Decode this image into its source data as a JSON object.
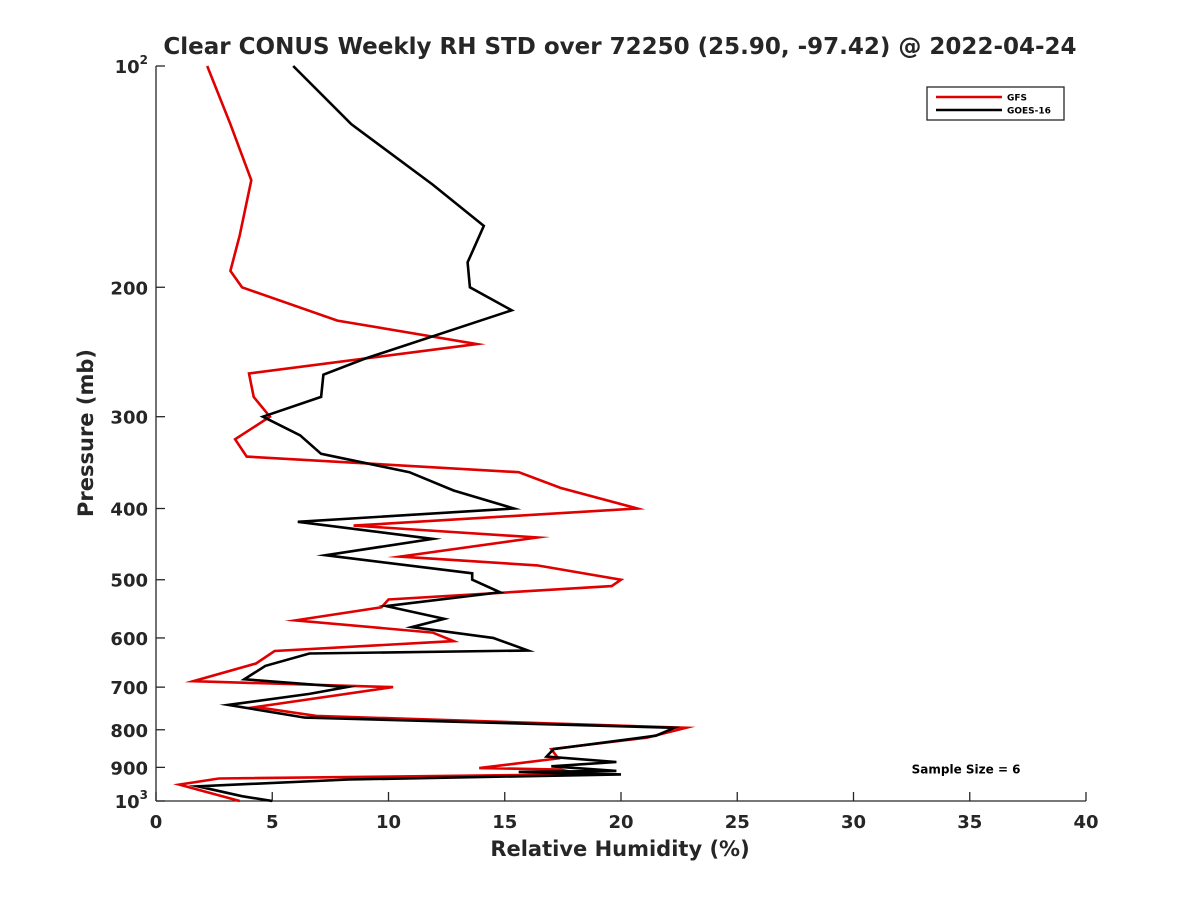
{
  "chart_data": {
    "type": "line",
    "title": "Clear CONUS Weekly RH STD over 72250 (25.90, -97.42) @ 2022-04-24",
    "xlabel": "Relative Humidity (%)",
    "ylabel": "Pressure (mb)",
    "xlim": [
      0,
      40
    ],
    "ylim": [
      1000,
      100
    ],
    "yscale": "log",
    "y_reversed": true,
    "grid": false,
    "legend_position": "top-right",
    "x_ticks": [
      {
        "value": 0,
        "label": "0"
      },
      {
        "value": 5,
        "label": "5"
      },
      {
        "value": 10,
        "label": "10"
      },
      {
        "value": 15,
        "label": "15"
      },
      {
        "value": 20,
        "label": "20"
      },
      {
        "value": 25,
        "label": "25"
      },
      {
        "value": 30,
        "label": "30"
      },
      {
        "value": 35,
        "label": "35"
      },
      {
        "value": 40,
        "label": "40"
      }
    ],
    "y_ticks": [
      {
        "value": 100,
        "label": "10",
        "sup": "2"
      },
      {
        "value": 200,
        "label": "200",
        "sup": ""
      },
      {
        "value": 300,
        "label": "300",
        "sup": ""
      },
      {
        "value": 400,
        "label": "400",
        "sup": ""
      },
      {
        "value": 500,
        "label": "500",
        "sup": ""
      },
      {
        "value": 600,
        "label": "600",
        "sup": ""
      },
      {
        "value": 700,
        "label": "700",
        "sup": ""
      },
      {
        "value": 800,
        "label": "800",
        "sup": ""
      },
      {
        "value": 900,
        "label": "900",
        "sup": ""
      },
      {
        "value": 1000,
        "label": "10",
        "sup": "3"
      }
    ],
    "series": [
      {
        "name": "GFS",
        "color": "#e00000",
        "points": [
          {
            "rh": 2.2,
            "p": 100
          },
          {
            "rh": 3.2,
            "p": 120
          },
          {
            "rh": 4.1,
            "p": 143
          },
          {
            "rh": 3.6,
            "p": 170
          },
          {
            "rh": 3.2,
            "p": 190
          },
          {
            "rh": 3.7,
            "p": 200
          },
          {
            "rh": 7.8,
            "p": 222
          },
          {
            "rh": 13.8,
            "p": 239
          },
          {
            "rh": 4.0,
            "p": 262
          },
          {
            "rh": 4.2,
            "p": 282
          },
          {
            "rh": 4.9,
            "p": 300
          },
          {
            "rh": 3.4,
            "p": 322
          },
          {
            "rh": 3.9,
            "p": 340
          },
          {
            "rh": 15.6,
            "p": 357
          },
          {
            "rh": 17.4,
            "p": 375
          },
          {
            "rh": 20.7,
            "p": 400
          },
          {
            "rh": 8.5,
            "p": 422
          },
          {
            "rh": 16.4,
            "p": 438
          },
          {
            "rh": 10.5,
            "p": 465
          },
          {
            "rh": 16.4,
            "p": 478
          },
          {
            "rh": 20.0,
            "p": 500
          },
          {
            "rh": 19.6,
            "p": 510
          },
          {
            "rh": 10.0,
            "p": 532
          },
          {
            "rh": 9.7,
            "p": 545
          },
          {
            "rh": 6.0,
            "p": 568
          },
          {
            "rh": 11.9,
            "p": 590
          },
          {
            "rh": 12.8,
            "p": 606
          },
          {
            "rh": 5.1,
            "p": 625
          },
          {
            "rh": 4.3,
            "p": 650
          },
          {
            "rh": 1.6,
            "p": 687
          },
          {
            "rh": 10.2,
            "p": 700
          },
          {
            "rh": 4.3,
            "p": 745
          },
          {
            "rh": 6.9,
            "p": 766
          },
          {
            "rh": 22.8,
            "p": 795
          },
          {
            "rh": 21.1,
            "p": 820
          },
          {
            "rh": 17.0,
            "p": 850
          },
          {
            "rh": 17.3,
            "p": 875
          },
          {
            "rh": 13.9,
            "p": 902
          },
          {
            "rh": 17.4,
            "p": 906
          },
          {
            "rh": 18.3,
            "p": 920
          },
          {
            "rh": 2.7,
            "p": 932
          },
          {
            "rh": 1.0,
            "p": 950
          },
          {
            "rh": 3.6,
            "p": 1000
          }
        ]
      },
      {
        "name": "GOES-16",
        "color": "#000000",
        "points": [
          {
            "rh": 5.9,
            "p": 100
          },
          {
            "rh": 8.4,
            "p": 120
          },
          {
            "rh": 11.9,
            "p": 145
          },
          {
            "rh": 14.1,
            "p": 165
          },
          {
            "rh": 13.4,
            "p": 185
          },
          {
            "rh": 13.5,
            "p": 200
          },
          {
            "rh": 15.3,
            "p": 215
          },
          {
            "rh": 9.0,
            "p": 250
          },
          {
            "rh": 7.2,
            "p": 263
          },
          {
            "rh": 7.1,
            "p": 282
          },
          {
            "rh": 4.6,
            "p": 300
          },
          {
            "rh": 6.2,
            "p": 318
          },
          {
            "rh": 7.1,
            "p": 337
          },
          {
            "rh": 10.9,
            "p": 357
          },
          {
            "rh": 12.8,
            "p": 378
          },
          {
            "rh": 15.4,
            "p": 400
          },
          {
            "rh": 6.1,
            "p": 417
          },
          {
            "rh": 11.9,
            "p": 440
          },
          {
            "rh": 7.3,
            "p": 463
          },
          {
            "rh": 13.6,
            "p": 490
          },
          {
            "rh": 13.6,
            "p": 500
          },
          {
            "rh": 14.8,
            "p": 520
          },
          {
            "rh": 9.9,
            "p": 543
          },
          {
            "rh": 12.4,
            "p": 565
          },
          {
            "rh": 11.0,
            "p": 580
          },
          {
            "rh": 14.5,
            "p": 600
          },
          {
            "rh": 16.0,
            "p": 624
          },
          {
            "rh": 6.6,
            "p": 630
          },
          {
            "rh": 4.7,
            "p": 655
          },
          {
            "rh": 3.8,
            "p": 683
          },
          {
            "rh": 8.2,
            "p": 700
          },
          {
            "rh": 6.6,
            "p": 715
          },
          {
            "rh": 3.1,
            "p": 740
          },
          {
            "rh": 6.4,
            "p": 770
          },
          {
            "rh": 22.3,
            "p": 795
          },
          {
            "rh": 21.5,
            "p": 815
          },
          {
            "rh": 17.1,
            "p": 850
          },
          {
            "rh": 16.8,
            "p": 870
          },
          {
            "rh": 19.8,
            "p": 885
          },
          {
            "rh": 17.0,
            "p": 897
          },
          {
            "rh": 19.8,
            "p": 910
          },
          {
            "rh": 15.6,
            "p": 913
          },
          {
            "rh": 20.0,
            "p": 920
          },
          {
            "rh": 8.3,
            "p": 935
          },
          {
            "rh": 1.8,
            "p": 955
          },
          {
            "rh": 3.7,
            "p": 985
          },
          {
            "rh": 5.0,
            "p": 1000
          }
        ]
      }
    ],
    "annotations": [
      {
        "text": "Sample Size = 6",
        "x": 32.5,
        "p": 906
      }
    ]
  }
}
